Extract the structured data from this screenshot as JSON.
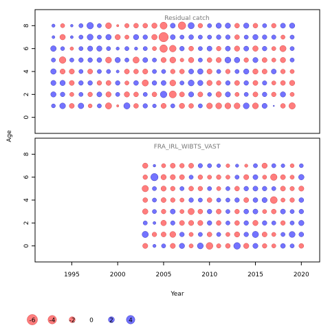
{
  "chart_data": {
    "type": "scatter",
    "xlabel": "Year",
    "ylabel": "Age",
    "xlim": [
      1991,
      2022
    ],
    "x_ticks": [
      1995,
      2000,
      2005,
      2010,
      2015,
      2020
    ],
    "colors": {
      "positive": "#5a5aff",
      "negative": "#ff6666",
      "edge_positive": "#2222aa",
      "edge_negative": "#cc3333"
    },
    "panels": [
      {
        "title": "Residual catch",
        "ylim": [
          -1.4,
          9.4
        ],
        "y_ticks": [
          0,
          2,
          4,
          6,
          8
        ],
        "years": [
          1993,
          1994,
          1995,
          1996,
          1997,
          1998,
          1999,
          2000,
          2001,
          2002,
          2003,
          2004,
          2005,
          2006,
          2007,
          2008,
          2009,
          2010,
          2011,
          2012,
          2013,
          2014,
          2015,
          2016,
          2017,
          2018,
          2019
        ],
        "ages": [
          1,
          2,
          3,
          4,
          5,
          6,
          7,
          8
        ],
        "residuals": {
          "1": [
            0.9,
            1.9,
            -1.4,
            1.8,
            -0.9,
            1.0,
            -2.2,
            -0.3,
            2.2,
            -1.3,
            1.2,
            0.8,
            -1.5,
            1.0,
            -1.6,
            -1.3,
            1.0,
            -1.9,
            -2.0,
            -2.0,
            -2.0,
            2.0,
            -2.0,
            1.5,
            0.1,
            -1.3,
            -2.3
          ],
          "2": [
            1.6,
            1.2,
            -1.0,
            1.0,
            -1.2,
            1.4,
            -1.6,
            1.0,
            -1.6,
            -1.3,
            1.0,
            -1.3,
            2.4,
            -2.8,
            -1.4,
            1.5,
            -1.4,
            0.9,
            -1.7,
            1.5,
            -1.0,
            1.0,
            -1.4,
            1.2,
            -1.2,
            1.6,
            -1.0
          ],
          "3": [
            1.5,
            1.6,
            -1.4,
            1.2,
            1.2,
            -1.2,
            -1.4,
            1.2,
            -1.0,
            1.3,
            -2.2,
            1.2,
            1.4,
            -2.0,
            1.0,
            2.0,
            1.6,
            -1.6,
            -1.2,
            1.2,
            -1.4,
            1.2,
            -1.4,
            1.1,
            -1.0,
            -1.3,
            -1.6
          ],
          "4": [
            1.7,
            -1.5,
            -1.5,
            1.0,
            -1.4,
            1.0,
            1.0,
            0.5,
            -1.4,
            -1.3,
            -1.5,
            1.0,
            1.0,
            -1.2,
            -1.3,
            1.4,
            1.7,
            -1.5,
            1.0,
            -1.2,
            1.0,
            1.6,
            -1.6,
            -1.4,
            1.4,
            -1.2,
            -1.0
          ],
          "5": [
            1.0,
            -2.5,
            1.0,
            1.2,
            1.2,
            1.3,
            -2.0,
            1.6,
            1.0,
            -2.2,
            1.4,
            1.0,
            -1.5,
            -2.0,
            -0.8,
            -1.6,
            1.0,
            -1.3,
            -1.5,
            2.0,
            1.7,
            -1.2,
            1.5,
            -1.4,
            -1.0,
            -1.6,
            1.0
          ],
          "6": [
            1.8,
            0.9,
            -0.7,
            1.0,
            1.5,
            1.6,
            1.0,
            0.6,
            1.0,
            0.6,
            1.0,
            -1.0,
            -3.2,
            -2.5,
            1.2,
            -1.3,
            1.0,
            1.4,
            -1.2,
            1.4,
            -1.6,
            1.4,
            -1.7,
            1.2,
            -1.0,
            -2.2,
            1.0
          ],
          "7": [
            0.5,
            -1.7,
            0.5,
            1.0,
            2.0,
            1.0,
            1.7,
            -1.6,
            -1.0,
            1.6,
            1.2,
            -1.7,
            -4.9,
            1.4,
            1.0,
            1.3,
            1.0,
            1.0,
            1.2,
            1.2,
            -1.3,
            1.0,
            1.6,
            1.2,
            1.1,
            -1.0,
            1.0
          ],
          "8": [
            0.6,
            -1.0,
            0.4,
            1.0,
            2.4,
            1.0,
            -2.0,
            -0.3,
            -1.1,
            -1.3,
            -1.3,
            -1.6,
            -2.8,
            1.4,
            -3.2,
            2.2,
            -1.2,
            1.0,
            1.6,
            1.6,
            -1.3,
            1.6,
            -1.3,
            1.0,
            -1.2,
            1.4,
            1.6
          ]
        }
      },
      {
        "title": "FRA_IRL_WIBTS_VAST",
        "ylim": [
          -1.4,
          9.4
        ],
        "y_ticks": [
          0,
          2,
          4,
          6,
          8
        ],
        "years": [
          2003,
          2004,
          2005,
          2006,
          2007,
          2008,
          2009,
          2010,
          2011,
          2012,
          2013,
          2014,
          2015,
          2016,
          2017,
          2018,
          2019,
          2020
        ],
        "ages": [
          0,
          1,
          2,
          3,
          4,
          5,
          6,
          7
        ],
        "residuals": {
          "0": [
            -1.5,
            0.6,
            1.0,
            -1.5,
            1.6,
            -1.0,
            2.0,
            -2.6,
            -1.1,
            -1.3,
            2.5,
            -1.6,
            1.5,
            -1.2,
            -1.0,
            1.3,
            1.0,
            -1.3
          ],
          "1": [
            2.2,
            -1.2,
            -1.4,
            -2.0,
            1.2,
            -1.0,
            1.0,
            -1.3,
            1.0,
            -1.0,
            -1.6,
            1.2,
            2.2,
            -1.4,
            -1.0,
            1.0,
            2.0,
            1.3
          ],
          "2": [
            1.0,
            0.5,
            -1.7,
            1.1,
            -1.4,
            -1.5,
            -1.5,
            1.2,
            -1.3,
            1.0,
            -1.3,
            1.2,
            -1.6,
            1.2,
            1.0,
            -1.2,
            1.0,
            1.6
          ],
          "3": [
            -1.7,
            1.0,
            -1.2,
            1.4,
            -1.0,
            -2.2,
            -1.3,
            1.2,
            -1.4,
            1.0,
            -1.2,
            1.3,
            1.4,
            -1.0,
            -1.3,
            1.4,
            1.0,
            1.2
          ],
          "4": [
            -1.3,
            1.0,
            -1.4,
            -1.2,
            -1.0,
            1.2,
            1.0,
            -1.3,
            1.0,
            1.0,
            1.2,
            -1.4,
            1.3,
            1.5,
            -2.7,
            -1.0,
            -1.2,
            1.3
          ],
          "5": [
            -2.3,
            1.0,
            -1.5,
            -1.2,
            1.0,
            -1.3,
            -1.2,
            1.0,
            -1.0,
            1.0,
            -1.3,
            1.2,
            1.4,
            1.2,
            1.0,
            -1.4,
            -1.1,
            -1.5
          ],
          "6": [
            -1.2,
            3.0,
            -1.6,
            -1.5,
            -1.4,
            1.0,
            -1.2,
            -1.0,
            -1.2,
            -1.0,
            1.0,
            -1.5,
            1.4,
            -1.0,
            -2.4,
            -1.4,
            -1.0,
            1.7
          ],
          "7": [
            -1.6,
            0.4,
            -1.0,
            -1.4,
            -1.2,
            -1.4,
            1.1,
            1.0,
            0.8,
            -0.8,
            0.6,
            -0.6,
            1.0,
            -1.6,
            1.0,
            0.8,
            -0.9,
            0.9
          ]
        }
      }
    ],
    "legend": {
      "values": [
        -6,
        -4,
        -2,
        0,
        2,
        4
      ],
      "labels": [
        "-6",
        "-4",
        "-2",
        "0",
        "2",
        "4"
      ]
    }
  }
}
